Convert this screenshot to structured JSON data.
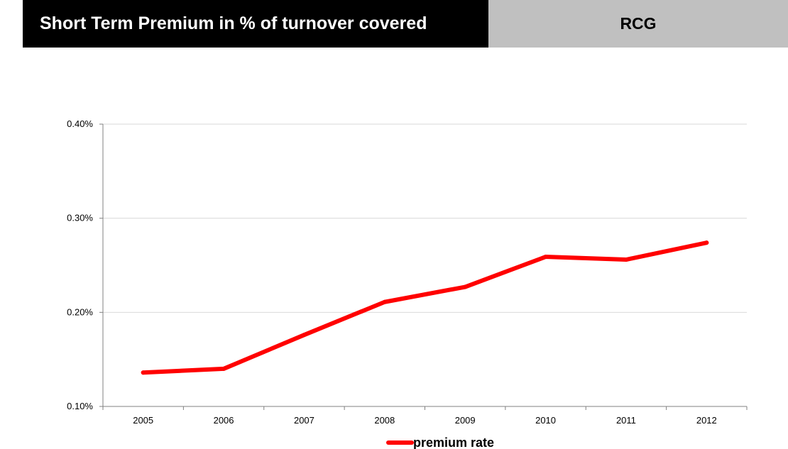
{
  "header": {
    "title": "Short Term Premium in % of turnover covered",
    "tag": "RCG"
  },
  "colors": {
    "series": "#ff0000",
    "title_bg": "#000000",
    "tag_bg": "#c0c0c0",
    "grid": "#d9d9d9"
  },
  "chart_data": {
    "type": "line",
    "x": [
      "2005",
      "2006",
      "2007",
      "2008",
      "2009",
      "2010",
      "2011",
      "2012"
    ],
    "series": [
      {
        "name": "premium rate",
        "values": [
          0.136,
          0.14,
          0.176,
          0.211,
          0.227,
          0.259,
          0.256,
          0.274
        ],
        "color": "#ff0000"
      }
    ],
    "ylim": [
      0.1,
      0.4
    ],
    "yticks": [
      "0.10%",
      "0.20%",
      "0.30%",
      "0.40%"
    ],
    "ytick_values": [
      0.1,
      0.2,
      0.3,
      0.4
    ],
    "grid": true,
    "legend": "bottom-center"
  }
}
